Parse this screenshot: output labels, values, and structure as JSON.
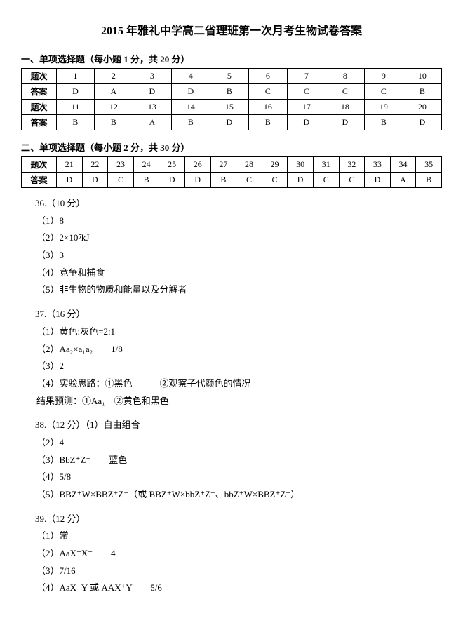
{
  "title": "2015 年雅礼中学高二省理班第一次月考生物试卷答案",
  "section1": {
    "heading": "一、单项选择题（每小题 1 分，共 20 分）",
    "row_label_q": "题次",
    "row_label_a": "答案",
    "nums1": [
      "1",
      "2",
      "3",
      "4",
      "5",
      "6",
      "7",
      "8",
      "9",
      "10"
    ],
    "ans1": [
      "D",
      "A",
      "D",
      "D",
      "B",
      "C",
      "C",
      "C",
      "C",
      "B"
    ],
    "nums2": [
      "11",
      "12",
      "13",
      "14",
      "15",
      "16",
      "17",
      "18",
      "19",
      "20"
    ],
    "ans2": [
      "B",
      "B",
      "A",
      "B",
      "D",
      "B",
      "D",
      "D",
      "B",
      "D"
    ]
  },
  "section2": {
    "heading": "二、单项选择题（每小题 2 分，共 30 分）",
    "row_label_q": "题次",
    "row_label_a": "答案",
    "nums": [
      "21",
      "22",
      "23",
      "24",
      "25",
      "26",
      "27",
      "28",
      "29",
      "30",
      "31",
      "32",
      "33",
      "34",
      "35"
    ],
    "ans": [
      "D",
      "D",
      "C",
      "B",
      "D",
      "D",
      "B",
      "C",
      "C",
      "D",
      "C",
      "C",
      "D",
      "A",
      "B"
    ]
  },
  "q36": {
    "head": "36.（10 分）",
    "l1": "（1）8",
    "l2": "（2）2×10⁵kJ",
    "l3": "（3）3",
    "l4": "（4）竞争和捕食",
    "l5": "（5）非生物的物质和能量以及分解者"
  },
  "q37": {
    "head": "37.（16 分）",
    "l1": "（1）黄色:灰色=2:1",
    "l2": "（2）Aa₂×a₁a₂　　1/8",
    "l3": "（3）2",
    "l4": "（4）实验思路：①黑色　　　②观察子代颜色的情况",
    "l5": "结果预测：①Aa₁　②黄色和黑色"
  },
  "q38": {
    "head": "38.（12 分）（1）自由组合",
    "l2": "（2）4",
    "l3": "（3）BbZ⁺Z⁻　　蓝色",
    "l4": "（4）5/8",
    "l5": "（5）BBZ⁺W×BBZ⁺Z⁻（或 BBZ⁺W×bbZ⁺Z⁻、bbZ⁺W×BBZ⁺Z⁻）"
  },
  "q39": {
    "head": "39.（12 分）",
    "l1": "（1）常",
    "l2": "（2）AaX⁺X⁻　　4",
    "l3": "（3）7/16",
    "l4": "（4）AaX⁺Y 或 AAX⁺Y　　5/6"
  }
}
